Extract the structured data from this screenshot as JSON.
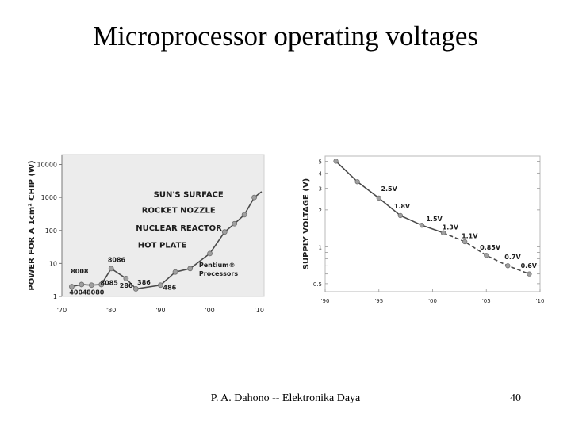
{
  "slide": {
    "title": "Microprocessor operating voltages",
    "footer": "P. A. Dahono -- Elektronika Daya",
    "page_number": "40"
  },
  "colors": {
    "panel_bg": "#ececec",
    "line": "#4a4a4a",
    "marker": "#a0a0a0",
    "text": "#1e1e1e"
  },
  "chart_data": [
    {
      "type": "line",
      "title": "",
      "ylabel": "POWER FOR A 1cm² CHIP (W)",
      "xlabel": "",
      "yscale": "log",
      "ylim": [
        1,
        20000
      ],
      "xlim": [
        1970,
        2011
      ],
      "x_ticks": [
        1970,
        1980,
        1990,
        2000,
        2010
      ],
      "x_tick_labels": [
        "'70",
        "'80",
        "'90",
        "'00",
        "'10"
      ],
      "y_ticks": [
        1,
        10,
        100,
        1000,
        10000
      ],
      "y_tick_labels": [
        "1",
        "10",
        "100",
        "1000",
        "10000"
      ],
      "series": [
        {
          "name": "power",
          "x": [
            1972,
            1974,
            1976,
            1978,
            1980,
            1983,
            1985,
            1990,
            1993,
            1996,
            2000,
            2003,
            2005,
            2007,
            2009,
            2010.5
          ],
          "y": [
            2,
            2.3,
            2.2,
            2.3,
            7,
            3.5,
            1.7,
            2.2,
            5.5,
            7,
            20,
            90,
            160,
            300,
            1000,
            1500
          ],
          "markers": [
            true,
            true,
            true,
            true,
            true,
            true,
            true,
            true,
            true,
            true,
            true,
            true,
            true,
            true,
            true,
            false
          ]
        }
      ],
      "point_labels": [
        {
          "text": "8008",
          "x": 1971.8,
          "y": 5
        },
        {
          "text": "4004",
          "x": 1971.5,
          "y": 1.15
        },
        {
          "text": "8080",
          "x": 1975,
          "y": 1.15
        },
        {
          "text": "8086",
          "x": 1979.3,
          "y": 11
        },
        {
          "text": "8085",
          "x": 1977.8,
          "y": 2.2
        },
        {
          "text": "286",
          "x": 1981.7,
          "y": 1.85
        },
        {
          "text": "386",
          "x": 1985.3,
          "y": 2.3
        },
        {
          "text": "486",
          "x": 1990.5,
          "y": 1.6
        },
        {
          "text": "Pentium®",
          "x": 1997.8,
          "y": 7.8
        },
        {
          "text": "Processors",
          "x": 1997.8,
          "y": 4.2
        }
      ],
      "annotations": [
        {
          "text": "SUN'S SURFACE",
          "x": 1988.6,
          "y": 1050
        },
        {
          "text": "ROCKET NOZZLE",
          "x": 1986.2,
          "y": 340
        },
        {
          "text": "NUCLEAR REACTOR",
          "x": 1985,
          "y": 100
        },
        {
          "text": "HOT PLATE",
          "x": 1985.4,
          "y": 30
        }
      ]
    },
    {
      "type": "line",
      "title": "",
      "ylabel": "SUPPLY VOLTAGE (V)",
      "xlabel": "",
      "yscale": "log",
      "ylim": [
        0.43,
        5.5
      ],
      "xlim": [
        1990,
        2010
      ],
      "x_ticks": [
        1990,
        1995,
        2000,
        2005,
        2010
      ],
      "x_tick_labels": [
        "'90",
        "'95",
        "'00",
        "'05",
        "'10"
      ],
      "y_ticks": [
        0.5,
        1,
        2,
        3,
        4,
        5
      ],
      "y_tick_labels": [
        "0.5",
        "1",
        "2",
        "3",
        "4",
        "5"
      ],
      "series": [
        {
          "name": "historical",
          "style": "solid",
          "x": [
            1991,
            1993,
            1995,
            1997,
            1999,
            2001
          ],
          "y": [
            5,
            3.4,
            2.5,
            1.8,
            1.5,
            1.3
          ]
        },
        {
          "name": "projected",
          "style": "dashed",
          "x": [
            2001,
            2003,
            2005,
            2007,
            2009
          ],
          "y": [
            1.3,
            1.1,
            0.85,
            0.7,
            0.6
          ]
        }
      ],
      "point_labels": [
        {
          "text": "2.5V",
          "x": 1995.2,
          "y": 2.85
        },
        {
          "text": "1.8V",
          "x": 1996.4,
          "y": 2.05
        },
        {
          "text": "1.5V",
          "x": 1999.4,
          "y": 1.62
        },
        {
          "text": "1.3V",
          "x": 2000.9,
          "y": 1.39
        },
        {
          "text": "1.1V",
          "x": 2002.7,
          "y": 1.18
        },
        {
          "text": "0.85V",
          "x": 2004.4,
          "y": 0.95
        },
        {
          "text": "0.7V",
          "x": 2006.7,
          "y": 0.79
        },
        {
          "text": "0.6V",
          "x": 2008.2,
          "y": 0.67
        }
      ]
    }
  ]
}
